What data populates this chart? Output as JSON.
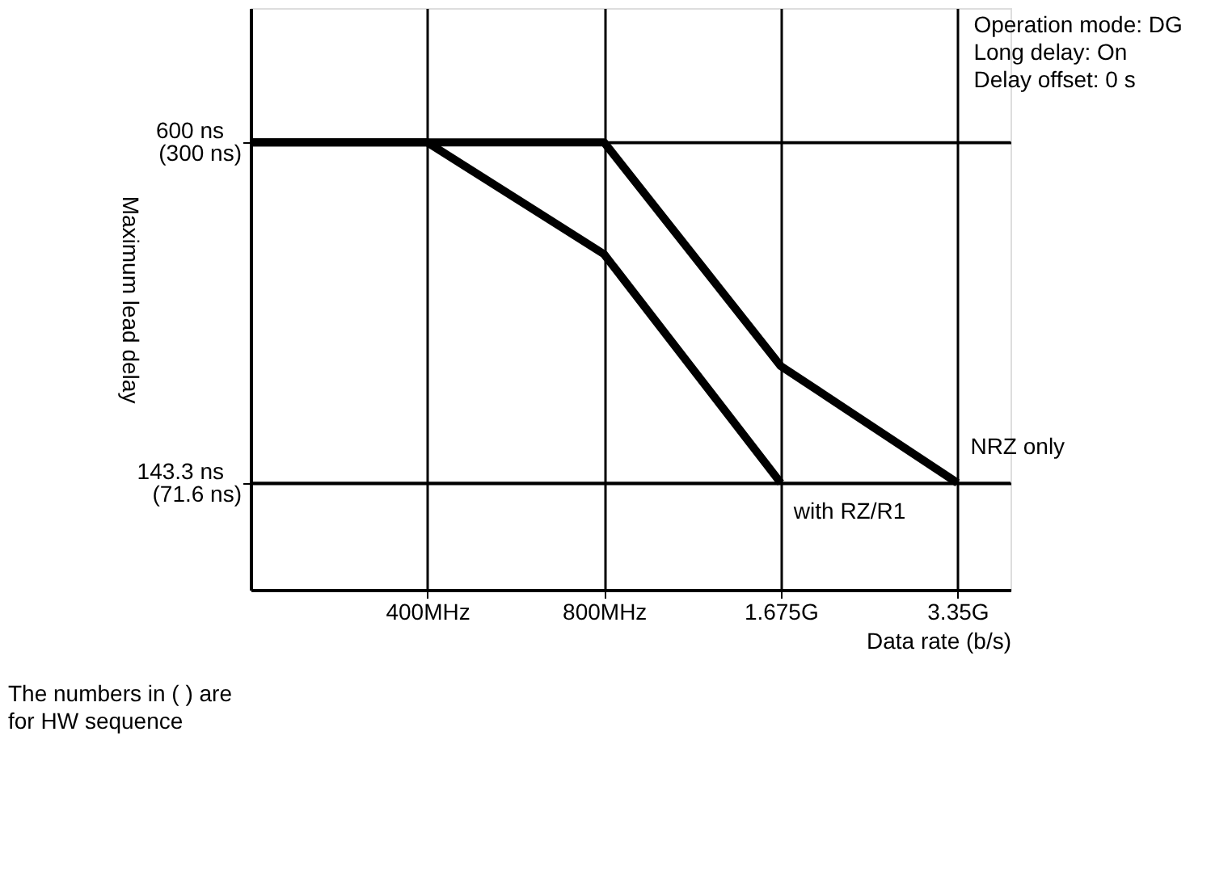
{
  "chart_data": {
    "type": "line",
    "xlabel": "Data rate (b/s)",
    "ylabel": "Maximum lead delay",
    "categories": [
      null,
      "400MHz",
      "800MHz",
      "1.675G",
      "3.35G"
    ],
    "ylim": [
      0,
      780
    ],
    "yticks": [
      {
        "value": 143.3,
        "label": "143.3 ns"
      },
      {
        "value": 600,
        "label": "600 ns"
      }
    ],
    "y2lim": [
      0,
      390
    ],
    "y2ticks": [
      {
        "value": 71.6,
        "label": "(71.6 ns)"
      },
      {
        "value": 300,
        "label": "(300 ns)"
      }
    ],
    "grid": true,
    "marker": "none",
    "line_style": "solid",
    "series": [
      {
        "name": "with RZ/R1",
        "color": "#000000",
        "values": [
          600,
          600,
          450,
          143.3,
          null
        ]
      },
      {
        "name": "NRZ only",
        "color": "#000000",
        "values": [
          600,
          600,
          600,
          300,
          143.3
        ]
      }
    ],
    "annotations": [
      "Operation mode: DG\nLong delay: On\nDelay offset: 0 s",
      "The numbers in ( ) are\nfor HW sequence"
    ]
  }
}
